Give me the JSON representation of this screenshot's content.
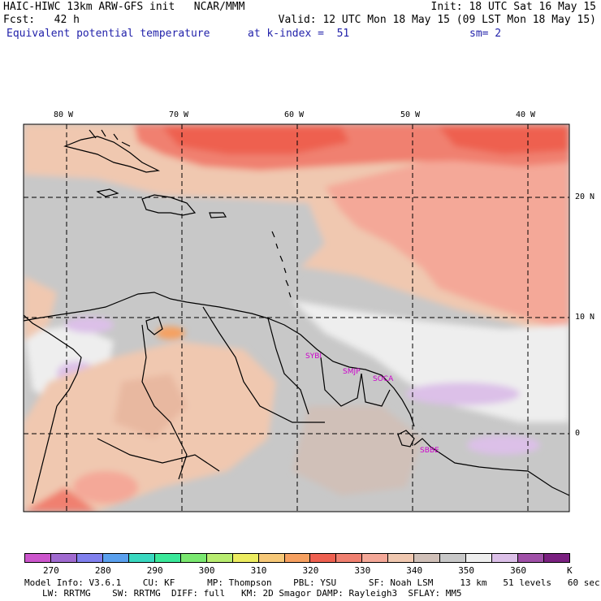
{
  "header": {
    "left1": "HAIC-HIWC 13km ARW-GFS init   NCAR/MMM",
    "left2": "Fcst:   42 h",
    "field": "Equivalent potential temperature",
    "init": "Init: 18 UTC Sat 16 May 15",
    "valid": "Valid: 12 UTC Mon 18 May 15 (09 LST Mon 18 May 15)",
    "level": "at k-index =  51",
    "smooth": "sm= 2"
  },
  "axes": {
    "lon_labels": [
      "80 W",
      "70 W",
      "60 W",
      "50 W",
      "40 W"
    ],
    "lat_labels": [
      "20 N",
      "10 N",
      "0"
    ]
  },
  "stations": [
    "SYBI",
    "SMJP",
    "SOCA",
    "SBBE"
  ],
  "colorbar": {
    "colors": [
      "#cc55cc",
      "#a06ad0",
      "#8080ee",
      "#5aa0ee",
      "#39d8c0",
      "#3ae89a",
      "#7ae870",
      "#b8ec70",
      "#ecec60",
      "#f6c878",
      "#f6a060",
      "#ee6050",
      "#f08070",
      "#f4a898",
      "#f0c8b0",
      "#d0c0b8",
      "#c8c8c8",
      "#eeeeee",
      "#dcc0e8",
      "#a050a8",
      "#7a2080"
    ],
    "labels": [
      "270",
      "280",
      "290",
      "300",
      "310",
      "320",
      "330",
      "340",
      "350",
      "360"
    ],
    "unit": "K"
  },
  "model_info": {
    "line1": "Model Info: V3.6.1    CU: KF      MP: Thompson    PBL: YSU      SF: Noah LSM     13 km   51 levels   60 sec",
    "line2": "LW: RRTMG    SW: RRTMG  DIFF: full   KM: 2D Smagor DAMP: Rayleigh3  SFLAY: MM5"
  }
}
